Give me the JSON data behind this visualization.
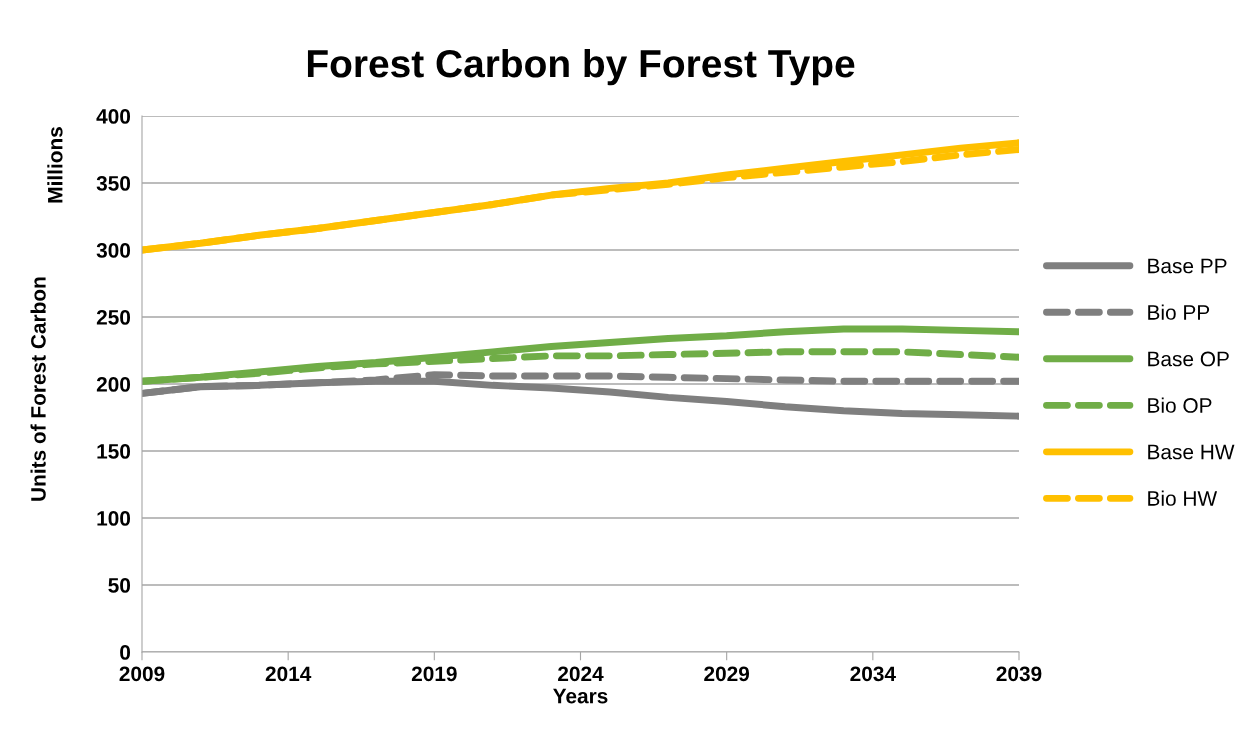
{
  "chart_data": {
    "type": "line",
    "title": "Forest Carbon by Forest Type",
    "xlabel": "Years",
    "ylabel": "Units of Forest Carbon",
    "annotations": [
      "Millions"
    ],
    "x": [
      2009,
      2011,
      2013,
      2015,
      2017,
      2019,
      2021,
      2023,
      2025,
      2027,
      2029,
      2031,
      2033,
      2035,
      2037,
      2039
    ],
    "series": [
      {
        "name": "Base PP",
        "color": "#7f7f7f",
        "line_style": "solid",
        "values": [
          193,
          198,
          199,
          201,
          202,
          202,
          199,
          197,
          194,
          190,
          187,
          183,
          180,
          178,
          177,
          176
        ]
      },
      {
        "name": "Bio PP",
        "color": "#7f7f7f",
        "line_style": "dashed",
        "values": [
          193,
          198,
          199,
          201,
          203,
          207,
          206,
          206,
          206,
          205,
          204,
          203,
          202,
          202,
          202,
          202
        ]
      },
      {
        "name": "Base OP",
        "color": "#70ad47",
        "line_style": "solid",
        "values": [
          202,
          205,
          209,
          213,
          216,
          220,
          224,
          228,
          231,
          234,
          236,
          239,
          241,
          241,
          240,
          239
        ]
      },
      {
        "name": "Bio OP",
        "color": "#70ad47",
        "line_style": "dashed",
        "values": [
          202,
          205,
          208,
          212,
          215,
          217,
          219,
          221,
          221,
          222,
          223,
          224,
          224,
          224,
          222,
          220
        ]
      },
      {
        "name": "Base HW",
        "color": "#ffc000",
        "line_style": "solid",
        "values": [
          300,
          305,
          311,
          316,
          322,
          328,
          334,
          341,
          346,
          350,
          356,
          361,
          366,
          371,
          376,
          380
        ]
      },
      {
        "name": "Bio HW",
        "color": "#ffc000",
        "line_style": "dashed",
        "values": [
          300,
          305,
          311,
          316,
          322,
          328,
          334,
          341,
          345,
          349,
          354,
          358,
          362,
          366,
          371,
          375
        ]
      }
    ],
    "xlim": [
      2009,
      2039
    ],
    "xticks": [
      2009,
      2014,
      2019,
      2024,
      2029,
      2034,
      2039
    ],
    "ylim": [
      0,
      400
    ],
    "yticks": [
      0,
      50,
      100,
      150,
      200,
      250,
      300,
      350,
      400
    ],
    "grid": "y",
    "legend": "right",
    "marker": "none"
  }
}
